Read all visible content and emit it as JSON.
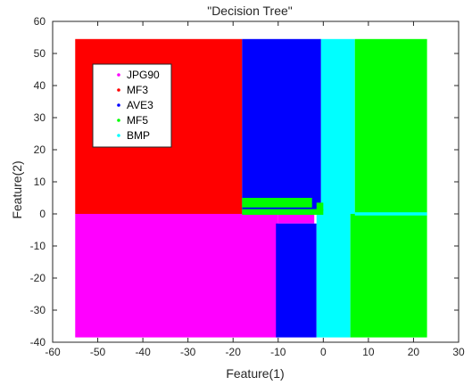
{
  "chart_data": {
    "type": "heatmap",
    "title": "\"Decision Tree\"",
    "xlabel": "Feature(1)",
    "ylabel": "Feature(2)",
    "xlim": [
      -60,
      30
    ],
    "ylim": [
      -40,
      60
    ],
    "xticks": [
      -60,
      -50,
      -40,
      -30,
      -20,
      -10,
      0,
      10,
      20,
      30
    ],
    "yticks": [
      -40,
      -30,
      -20,
      -10,
      0,
      10,
      20,
      30,
      40,
      50,
      60
    ],
    "grid": false,
    "legend_position": "top-left",
    "classes": [
      {
        "name": "JPG90",
        "color": "#ff00ff"
      },
      {
        "name": "MF3",
        "color": "#ff0000"
      },
      {
        "name": "AVE3",
        "color": "#0000ff"
      },
      {
        "name": "MF5",
        "color": "#00ff00"
      },
      {
        "name": "BMP",
        "color": "#00ffff"
      }
    ],
    "regions": [
      {
        "class": "MF3",
        "x": [
          -55,
          -18
        ],
        "y": [
          0,
          54.5
        ]
      },
      {
        "class": "AVE3",
        "x": [
          -18,
          -0.5
        ],
        "y": [
          0,
          54.5
        ]
      },
      {
        "class": "BMP",
        "x": [
          -0.5,
          7
        ],
        "y": [
          0,
          54.5
        ]
      },
      {
        "class": "MF5",
        "x": [
          7,
          23
        ],
        "y": [
          0,
          54.5
        ]
      },
      {
        "class": "JPG90",
        "x": [
          -55,
          -10
        ],
        "y": [
          -38.5,
          0
        ]
      },
      {
        "class": "JPG90",
        "x": [
          -10,
          -2
        ],
        "y": [
          -3,
          0
        ]
      },
      {
        "class": "AVE3",
        "x": [
          -10.5,
          -1.5
        ],
        "y": [
          -38.5,
          -3
        ]
      },
      {
        "class": "BMP",
        "x": [
          -1.5,
          6
        ],
        "y": [
          -38.5,
          0
        ]
      },
      {
        "class": "MF5",
        "x": [
          6,
          23
        ],
        "y": [
          -38.5,
          0
        ]
      },
      {
        "class": "MF5",
        "x": [
          -18,
          -2.5
        ],
        "y": [
          2,
          5
        ]
      },
      {
        "class": "MF5",
        "x": [
          -18,
          0
        ],
        "y": [
          -0.3,
          1.5
        ]
      },
      {
        "class": "MF5",
        "x": [
          -1.5,
          0
        ],
        "y": [
          1,
          3.5
        ]
      },
      {
        "class": "BMP",
        "x": [
          7,
          23
        ],
        "y": [
          -0.5,
          0.5
        ]
      }
    ]
  }
}
